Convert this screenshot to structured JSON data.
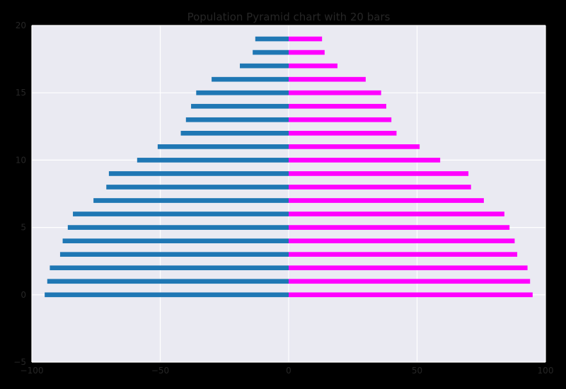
{
  "chart_data": {
    "type": "bar",
    "orientation": "horizontal",
    "title": "Population Pyramid chart with 20 bars",
    "xlabel": "",
    "ylabel": "",
    "xlim": [
      -100,
      100
    ],
    "ylim": [
      -5,
      20
    ],
    "xticks": [
      -100,
      -50,
      0,
      50,
      100
    ],
    "xtick_labels": [
      "−100",
      "−50",
      "0",
      "50",
      "100"
    ],
    "yticks": [
      -5,
      0,
      5,
      10,
      15,
      20
    ],
    "ytick_labels": [
      "−5",
      "0",
      "5",
      "10",
      "15",
      "20"
    ],
    "grid": true,
    "categories": [
      0,
      1,
      2,
      3,
      4,
      5,
      6,
      7,
      8,
      9,
      10,
      11,
      12,
      13,
      14,
      15,
      16,
      17,
      18,
      19
    ],
    "series": [
      {
        "color": "#1f77b4",
        "values": [
          -95,
          -94,
          -93,
          -89,
          -88,
          -86,
          -84,
          -76,
          -71,
          -70,
          -59,
          -51,
          -42,
          -40,
          -38,
          -36,
          -30,
          -19,
          -14,
          -13
        ]
      },
      {
        "color": "#ff00ff",
        "values": [
          95,
          94,
          93,
          89,
          88,
          86,
          84,
          76,
          71,
          70,
          59,
          51,
          42,
          40,
          38,
          36,
          30,
          19,
          14,
          13
        ]
      }
    ],
    "colors": {
      "plot_background": "#eaeaf2",
      "grid": "#ffffff",
      "text": "#262626"
    }
  }
}
